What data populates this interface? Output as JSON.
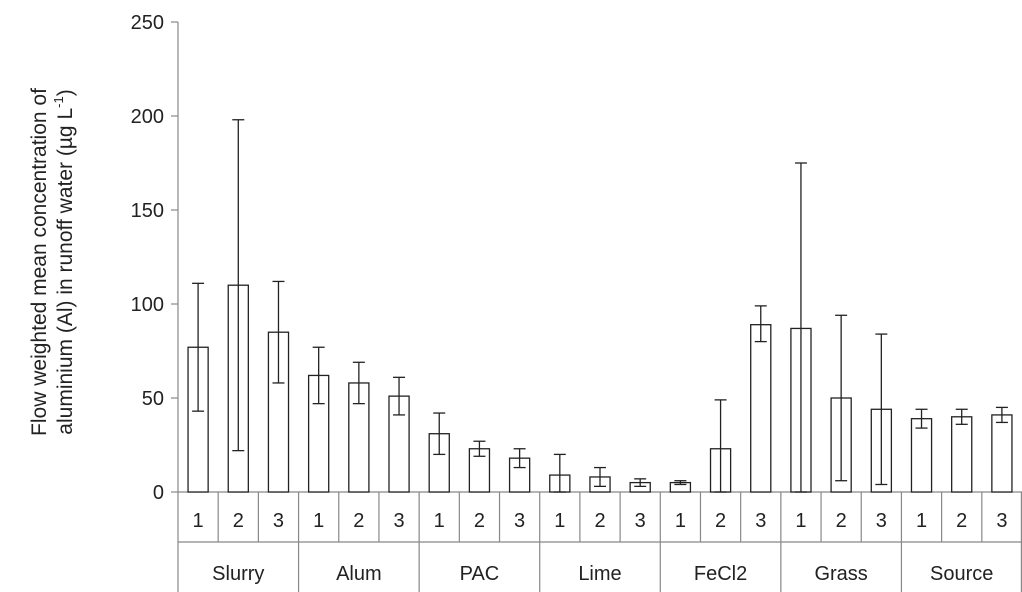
{
  "chart_data": {
    "type": "bar",
    "ylabel_line1": "Flow weighted mean concentration of",
    "ylabel_line2_prefix": "aluminium (Al) in runoff water (µg L",
    "ylabel_superscript": "-1",
    "ylabel_line2_suffix": ")",
    "ylim": [
      0,
      250
    ],
    "yticks": [
      0,
      50,
      100,
      150,
      200,
      250
    ],
    "grid": false,
    "groups": [
      {
        "label": "Slurry",
        "reps": [
          {
            "label": "1",
            "value": 77,
            "err_low": 43,
            "err_high": 111
          },
          {
            "label": "2",
            "value": 110,
            "err_low": 22,
            "err_high": 198
          },
          {
            "label": "3",
            "value": 85,
            "err_low": 58,
            "err_high": 112
          }
        ]
      },
      {
        "label": "Alum",
        "reps": [
          {
            "label": "1",
            "value": 62,
            "err_low": 47,
            "err_high": 77
          },
          {
            "label": "2",
            "value": 58,
            "err_low": 47,
            "err_high": 69
          },
          {
            "label": "3",
            "value": 51,
            "err_low": 41,
            "err_high": 61
          }
        ]
      },
      {
        "label": "PAC",
        "reps": [
          {
            "label": "1",
            "value": 31,
            "err_low": 20,
            "err_high": 42
          },
          {
            "label": "2",
            "value": 23,
            "err_low": 19,
            "err_high": 27
          },
          {
            "label": "3",
            "value": 18,
            "err_low": 13,
            "err_high": 23
          }
        ]
      },
      {
        "label": "Lime",
        "reps": [
          {
            "label": "1",
            "value": 9,
            "err_low": 0,
            "err_high": 20
          },
          {
            "label": "2",
            "value": 8,
            "err_low": 3,
            "err_high": 13
          },
          {
            "label": "3",
            "value": 5,
            "err_low": 3,
            "err_high": 7
          }
        ]
      },
      {
        "label": "FeCl2",
        "reps": [
          {
            "label": "1",
            "value": 5,
            "err_low": 4,
            "err_high": 6
          },
          {
            "label": "2",
            "value": 23,
            "err_low": 0,
            "err_high": 49
          },
          {
            "label": "3",
            "value": 89,
            "err_low": 80,
            "err_high": 99
          }
        ]
      },
      {
        "label": "Grass",
        "reps": [
          {
            "label": "1",
            "value": 87,
            "err_low": 0,
            "err_high": 175
          },
          {
            "label": "2",
            "value": 50,
            "err_low": 6,
            "err_high": 94
          },
          {
            "label": "3",
            "value": 44,
            "err_low": 4,
            "err_high": 84
          }
        ]
      },
      {
        "label": "Source",
        "reps": [
          {
            "label": "1",
            "value": 39,
            "err_low": 34,
            "err_high": 44
          },
          {
            "label": "2",
            "value": 40,
            "err_low": 36,
            "err_high": 44
          },
          {
            "label": "3",
            "value": 41,
            "err_low": 37,
            "err_high": 45
          }
        ]
      }
    ]
  }
}
